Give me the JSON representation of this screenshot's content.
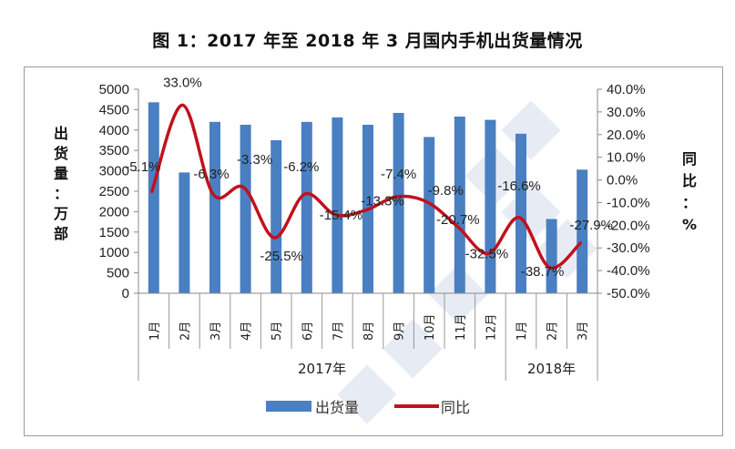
{
  "title": "图 1：2017 年至 2018 年 3 月国内手机出货量情况",
  "chart_data": {
    "type": "bar+line",
    "title": "图 1：2017 年至 2018 年 3 月国内手机出货量情况",
    "categories": [
      "1月",
      "2月",
      "3月",
      "4月",
      "5月",
      "6月",
      "7月",
      "8月",
      "9月",
      "10月",
      "11月",
      "12月",
      "1月",
      "2月",
      "3月"
    ],
    "category_groups": [
      {
        "label": "2017年",
        "start": 0,
        "end": 11
      },
      {
        "label": "2018年",
        "start": 12,
        "end": 14
      }
    ],
    "series": [
      {
        "name": "出货量",
        "type": "bar",
        "axis": "left",
        "color": "#4a7fc1",
        "values": [
          4680,
          2960,
          4200,
          4130,
          3750,
          4200,
          4310,
          4130,
          4420,
          3830,
          4330,
          4250,
          3910,
          1820,
          3030
        ]
      },
      {
        "name": "同比",
        "type": "line",
        "axis": "right",
        "color": "#c0121c",
        "values": [
          -5.1,
          33.0,
          -6.3,
          -3.3,
          -25.5,
          -6.2,
          -15.4,
          -13.3,
          -7.4,
          -9.8,
          -20.7,
          -32.5,
          -16.6,
          -38.7,
          -27.9
        ],
        "data_labels": [
          "-5.1%",
          "33.0%",
          "-6.3%",
          "-3.3%",
          "-25.5%",
          "-6.2%",
          "-15.4%",
          "-13.3%",
          "-7.4%",
          "-9.8%",
          "-20.7%",
          "-32.5%",
          "-16.6%",
          "-38.7%",
          "-27.9%"
        ]
      }
    ],
    "ylabel": "出货量：万部",
    "ylabel_right": "同比：%",
    "ylim": [
      0,
      5000
    ],
    "yticks": [
      "0",
      "500",
      "1000",
      "1500",
      "2000",
      "2500",
      "3000",
      "3500",
      "4000",
      "4500",
      "5000"
    ],
    "ylim_right": [
      -50,
      40
    ],
    "yticks_right": [
      "-50.0%",
      "-40.0%",
      "-30.0%",
      "-20.0%",
      "-10.0%",
      "0.0%",
      "10.0%",
      "20.0%",
      "30.0%",
      "40.0%"
    ],
    "grid": false,
    "legend_position": "bottom",
    "legend": [
      "出货量",
      "同比"
    ]
  }
}
